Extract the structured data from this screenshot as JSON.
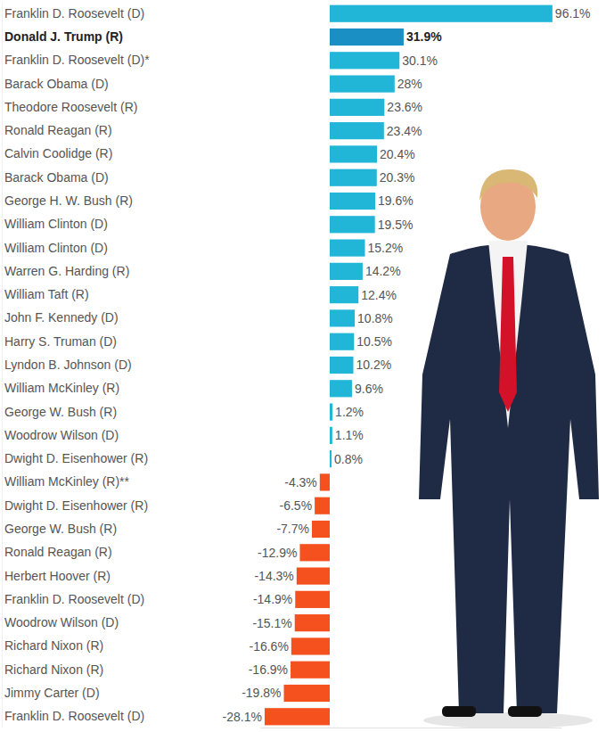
{
  "chart_data": {
    "type": "bar",
    "orientation": "horizontal",
    "categories": [
      "Franklin D. Roosevelt (D)",
      "Donald J. Trump (R)",
      "Franklin D. Roosevelt (D)*",
      "Barack Obama (D)",
      "Theodore Roosevelt (R)",
      "Ronald Reagan (R)",
      "Calvin Coolidge (R)",
      "Barack Obama (D)",
      "George H. W. Bush (R)",
      "William Clinton (D)",
      "William Clinton (D)",
      "Warren G. Harding (R)",
      "William Taft (R)",
      "John F. Kennedy (D)",
      "Harry S. Truman (D)",
      "Lyndon B. Johnson (D)",
      "William McKinley (R)",
      "George W. Bush (R)",
      "Woodrow Wilson (D)",
      "Dwight D. Eisenhower (R)",
      "William McKinley (R)**",
      "Dwight D. Eisenhower (R)",
      "George W. Bush (R)",
      "Ronald Reagan (R)",
      "Herbert Hoover (R)",
      "Franklin D. Roosevelt (D)",
      "Woodrow Wilson (D)",
      "Richard Nixon (R)",
      "Richard Nixon (R)",
      "Jimmy Carter (D)",
      "Franklin D. Roosevelt (D)"
    ],
    "values": [
      96.1,
      31.9,
      30.1,
      28,
      23.6,
      23.4,
      20.4,
      20.3,
      19.6,
      19.5,
      15.2,
      14.2,
      12.4,
      10.8,
      10.5,
      10.2,
      9.6,
      1.2,
      1.1,
      0.8,
      -4.3,
      -6.5,
      -7.7,
      -12.9,
      -14.3,
      -14.9,
      -15.1,
      -16.6,
      -16.9,
      -19.8,
      -28.1
    ],
    "value_labels": [
      "96.1%",
      "31.9%",
      "30.1%",
      "28%",
      "23.6%",
      "23.4%",
      "20.4%",
      "20.3%",
      "19.6%",
      "19.5%",
      "15.2%",
      "14.2%",
      "12.4%",
      "10.8%",
      "10.5%",
      "10.2%",
      "9.6%",
      "1.2%",
      "1.1%",
      "0.8%",
      "-4.3%",
      "-6.5%",
      "-7.7%",
      "-12.9%",
      "-14.3%",
      "-14.9%",
      "-15.1%",
      "-16.6%",
      "-16.9%",
      "-19.8%",
      "-28.1%"
    ],
    "colors": [
      "#21b6d7",
      "#1a8fc4",
      "#21b6d7",
      "#21b6d7",
      "#21b6d7",
      "#21b6d7",
      "#21b6d7",
      "#21b6d7",
      "#21b6d7",
      "#21b6d7",
      "#21b6d7",
      "#21b6d7",
      "#21b6d7",
      "#21b6d7",
      "#21b6d7",
      "#21b6d7",
      "#21b6d7",
      "#21b6d7",
      "#21b6d7",
      "#21b6d7",
      "#f4511e",
      "#f4511e",
      "#f4511e",
      "#f4511e",
      "#f4511e",
      "#f4511e",
      "#f4511e",
      "#f4511e",
      "#f4511e",
      "#f4511e",
      "#f4511e"
    ],
    "xlim": [
      -30,
      100
    ],
    "xticks": [],
    "data_labels": true,
    "tick_labels": "y",
    "grid": false
  }
}
